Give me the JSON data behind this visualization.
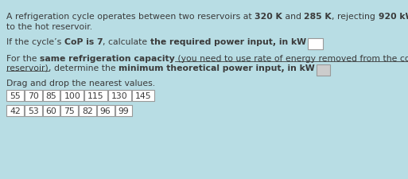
{
  "background_color": "#b8dde4",
  "fig_width": 5.13,
  "fig_height": 2.26,
  "dpi": 100,
  "text_color": "#3a3a3a",
  "box_color": "#ffffff",
  "box_edge_color": "#999999",
  "box2_color": "#cccccc",
  "row1_values": [
    "55",
    "70",
    "85",
    "100",
    "115",
    "130",
    "145"
  ],
  "row2_values": [
    "42",
    "53",
    "60",
    "75",
    "82",
    "96",
    "99"
  ],
  "font_size": 7.8
}
